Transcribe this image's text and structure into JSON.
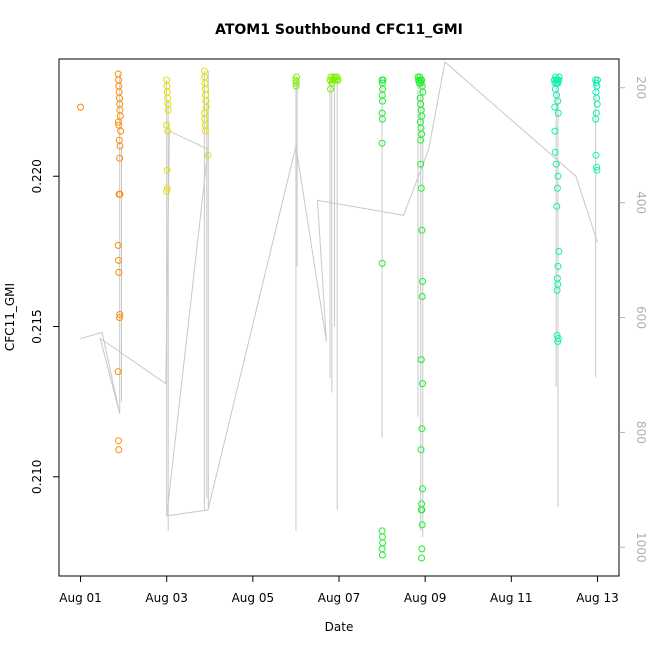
{
  "chart_data": {
    "type": "scatter",
    "title": "ATOM1 Southbound CFC11_GMI",
    "xlabel": "Date",
    "ylabel": "CFC11_GMI",
    "x_axis": {
      "type": "date",
      "range": [
        "2016-07-31T12:00",
        "2016-08-13T12:00"
      ],
      "ticks": [
        {
          "value": "2016-08-01T00:00",
          "label": "Aug 01"
        },
        {
          "value": "2016-08-03T00:00",
          "label": "Aug 03"
        },
        {
          "value": "2016-08-05T00:00",
          "label": "Aug 05"
        },
        {
          "value": "2016-08-07T00:00",
          "label": "Aug 07"
        },
        {
          "value": "2016-08-09T00:00",
          "label": "Aug 09"
        },
        {
          "value": "2016-08-11T00:00",
          "label": "Aug 11"
        },
        {
          "value": "2016-08-13T00:00",
          "label": "Aug 13"
        }
      ]
    },
    "y_axis": {
      "range": [
        0.2067,
        0.2239
      ],
      "ticks": [
        0.21,
        0.215,
        0.22
      ],
      "tick_labels": [
        "0.210",
        "0.215",
        "0.220"
      ]
    },
    "y2_axis": {
      "label": "",
      "range": [
        1050,
        150
      ],
      "ticks": [
        200,
        400,
        600,
        800,
        1000
      ],
      "tick_labels": [
        "200",
        "400",
        "600",
        "800",
        "1000"
      ],
      "color": "#b0b0b0"
    },
    "grid": false,
    "colors": {
      "line": "#c8c8c8",
      "axis": "#000000"
    },
    "groups": [
      {
        "color": "#ff8c00",
        "points": [
          [
            "2016-08-01T00:00",
            0.2223
          ],
          [
            "2016-08-01T21:00",
            0.2234
          ],
          [
            "2016-08-01T21:10",
            0.2232
          ],
          [
            "2016-08-01T21:20",
            0.223
          ],
          [
            "2016-08-01T21:30",
            0.2228
          ],
          [
            "2016-08-01T21:40",
            0.2226
          ],
          [
            "2016-08-01T21:50",
            0.2224
          ],
          [
            "2016-08-01T22:00",
            0.2222
          ],
          [
            "2016-08-01T22:10",
            0.222
          ],
          [
            "2016-08-01T21:05",
            0.2218
          ],
          [
            "2016-08-01T21:15",
            0.2217
          ],
          [
            "2016-08-01T22:20",
            0.2215
          ],
          [
            "2016-08-01T21:35",
            0.2212
          ],
          [
            "2016-08-01T22:00",
            0.221
          ],
          [
            "2016-08-01T21:45",
            0.2206
          ],
          [
            "2016-08-01T21:30",
            0.2194
          ],
          [
            "2016-08-01T22:00",
            0.2194
          ],
          [
            "2016-08-01T21:00",
            0.2177
          ],
          [
            "2016-08-01T21:10",
            0.2172
          ],
          [
            "2016-08-01T21:20",
            0.2168
          ],
          [
            "2016-08-01T21:40",
            0.2153
          ],
          [
            "2016-08-01T21:50",
            0.2154
          ],
          [
            "2016-08-01T21:00",
            0.2135
          ],
          [
            "2016-08-01T21:10",
            0.2112
          ],
          [
            "2016-08-01T21:20",
            0.2109
          ]
        ]
      },
      {
        "color": "#e0e000",
        "points": [
          [
            "2016-08-03T00:00",
            0.2232
          ],
          [
            "2016-08-03T00:10",
            0.223
          ],
          [
            "2016-08-03T00:20",
            0.2228
          ],
          [
            "2016-08-03T00:30",
            0.2226
          ],
          [
            "2016-08-03T00:40",
            0.2224
          ],
          [
            "2016-08-03T00:50",
            0.2222
          ],
          [
            "2016-08-03T00:00",
            0.2217
          ],
          [
            "2016-08-03T00:30",
            0.2215
          ],
          [
            "2016-08-03T00:10",
            0.2202
          ],
          [
            "2016-08-03T00:20",
            0.2196
          ],
          [
            "2016-08-03T00:00",
            0.2195
          ],
          [
            "2016-08-03T21:00",
            0.2235
          ],
          [
            "2016-08-03T21:10",
            0.2233
          ],
          [
            "2016-08-03T21:20",
            0.2231
          ],
          [
            "2016-08-03T21:30",
            0.2229
          ],
          [
            "2016-08-03T21:40",
            0.2227
          ],
          [
            "2016-08-03T21:50",
            0.2225
          ],
          [
            "2016-08-03T22:00",
            0.2223
          ],
          [
            "2016-08-03T21:05",
            0.2221
          ],
          [
            "2016-08-03T21:15",
            0.2219
          ],
          [
            "2016-08-03T21:25",
            0.2217
          ],
          [
            "2016-08-03T21:35",
            0.2215
          ],
          [
            "2016-08-03T23:00",
            0.2207
          ]
        ]
      },
      {
        "color": "#80f000",
        "points": [
          [
            "2016-08-06T00:00",
            0.2232
          ],
          [
            "2016-08-06T00:10",
            0.2231
          ],
          [
            "2016-08-06T00:20",
            0.2233
          ],
          [
            "2016-08-06T00:05",
            0.223
          ],
          [
            "2016-08-06T19:00",
            0.2232
          ],
          [
            "2016-08-06T19:30",
            0.2233
          ],
          [
            "2016-08-06T20:00",
            0.2231
          ],
          [
            "2016-08-06T20:30",
            0.2232
          ],
          [
            "2016-08-06T21:00",
            0.2233
          ],
          [
            "2016-08-06T21:30",
            0.2232
          ],
          [
            "2016-08-06T22:00",
            0.2233
          ],
          [
            "2016-08-06T22:30",
            0.2232
          ],
          [
            "2016-08-06T23:00",
            0.2233
          ],
          [
            "2016-08-06T23:30",
            0.2232
          ],
          [
            "2016-08-06T19:15",
            0.2229
          ]
        ]
      },
      {
        "color": "#20f030",
        "points": [
          [
            "2016-08-08T00:00",
            0.2232
          ],
          [
            "2016-08-08T00:10",
            0.2231
          ],
          [
            "2016-08-08T00:20",
            0.2229
          ],
          [
            "2016-08-08T00:30",
            0.2232
          ],
          [
            "2016-08-08T00:05",
            0.2227
          ],
          [
            "2016-08-08T00:15",
            0.2225
          ],
          [
            "2016-08-08T00:00",
            0.2221
          ],
          [
            "2016-08-08T00:10",
            0.2219
          ],
          [
            "2016-08-08T00:00",
            0.2211
          ],
          [
            "2016-08-08T00:05",
            0.2171
          ],
          [
            "2016-08-08T00:00",
            0.2082
          ],
          [
            "2016-08-08T00:10",
            0.208
          ],
          [
            "2016-08-08T00:20",
            0.2078
          ],
          [
            "2016-08-08T00:00",
            0.2076
          ],
          [
            "2016-08-08T00:10",
            0.2074
          ],
          [
            "2016-08-08T20:00",
            0.2233
          ],
          [
            "2016-08-08T20:20",
            0.2232
          ],
          [
            "2016-08-08T20:40",
            0.2231
          ],
          [
            "2016-08-08T21:00",
            0.2233
          ],
          [
            "2016-08-08T21:20",
            0.2232
          ],
          [
            "2016-08-08T21:40",
            0.2231
          ],
          [
            "2016-08-08T22:00",
            0.2232
          ],
          [
            "2016-08-08T22:20",
            0.223
          ],
          [
            "2016-08-08T22:40",
            0.2228
          ],
          [
            "2016-08-08T21:10",
            0.2226
          ],
          [
            "2016-08-08T21:30",
            0.2224
          ],
          [
            "2016-08-08T21:50",
            0.2222
          ],
          [
            "2016-08-08T22:10",
            0.222
          ],
          [
            "2016-08-08T21:20",
            0.2218
          ],
          [
            "2016-08-08T21:40",
            0.2216
          ],
          [
            "2016-08-08T22:00",
            0.2214
          ],
          [
            "2016-08-08T21:30",
            0.2212
          ],
          [
            "2016-08-08T21:30",
            0.2204
          ],
          [
            "2016-08-08T21:50",
            0.2196
          ],
          [
            "2016-08-08T22:10",
            0.2182
          ],
          [
            "2016-08-08T22:30",
            0.2165
          ],
          [
            "2016-08-08T22:20",
            0.216
          ],
          [
            "2016-08-08T21:50",
            0.2139
          ],
          [
            "2016-08-08T22:30",
            0.2131
          ],
          [
            "2016-08-08T22:10",
            0.2116
          ],
          [
            "2016-08-08T21:40",
            0.2109
          ],
          [
            "2016-08-08T22:30",
            0.2096
          ],
          [
            "2016-08-08T22:00",
            0.2091
          ],
          [
            "2016-08-08T21:50",
            0.2089
          ],
          [
            "2016-08-08T22:10",
            0.2089
          ],
          [
            "2016-08-08T22:20",
            0.2084
          ],
          [
            "2016-08-08T22:10",
            0.2076
          ],
          [
            "2016-08-08T22:00",
            0.2073
          ]
        ]
      },
      {
        "color": "#10f0b0",
        "points": [
          [
            "2016-08-12T00:00",
            0.2232
          ],
          [
            "2016-08-12T00:20",
            0.2231
          ],
          [
            "2016-08-12T00:40",
            0.2233
          ],
          [
            "2016-08-12T01:00",
            0.2232
          ],
          [
            "2016-08-12T01:20",
            0.2231
          ],
          [
            "2016-08-12T01:40",
            0.2232
          ],
          [
            "2016-08-12T02:00",
            0.2231
          ],
          [
            "2016-08-12T02:20",
            0.2232
          ],
          [
            "2016-08-12T02:40",
            0.2233
          ],
          [
            "2016-08-12T00:30",
            0.2229
          ],
          [
            "2016-08-12T01:10",
            0.2227
          ],
          [
            "2016-08-12T01:50",
            0.2225
          ],
          [
            "2016-08-12T00:15",
            0.2223
          ],
          [
            "2016-08-12T02:10",
            0.2221
          ],
          [
            "2016-08-12T00:20",
            0.2215
          ],
          [
            "2016-08-12T00:30",
            0.2208
          ],
          [
            "2016-08-12T01:00",
            0.2204
          ],
          [
            "2016-08-12T02:00",
            0.22
          ],
          [
            "2016-08-12T01:40",
            0.2196
          ],
          [
            "2016-08-12T01:20",
            0.219
          ],
          [
            "2016-08-12T02:30",
            0.2175
          ],
          [
            "2016-08-12T02:00",
            0.217
          ],
          [
            "2016-08-12T01:40",
            0.2166
          ],
          [
            "2016-08-12T01:50",
            0.2164
          ],
          [
            "2016-08-12T01:30",
            0.2162
          ],
          [
            "2016-08-12T01:30",
            0.2147
          ],
          [
            "2016-08-12T01:50",
            0.2145
          ],
          [
            "2016-08-12T02:10",
            0.2146
          ],
          [
            "2016-08-12T23:00",
            0.2232
          ],
          [
            "2016-08-12T23:20",
            0.2231
          ],
          [
            "2016-08-12T23:40",
            0.223
          ],
          [
            "2016-08-13T00:00",
            0.2232
          ],
          [
            "2016-08-12T23:10",
            0.2228
          ],
          [
            "2016-08-12T23:30",
            0.2226
          ],
          [
            "2016-08-12T23:50",
            0.2224
          ],
          [
            "2016-08-12T23:20",
            0.2221
          ],
          [
            "2016-08-12T23:00",
            0.2219
          ],
          [
            "2016-08-12T23:10",
            0.2207
          ],
          [
            "2016-08-12T23:30",
            0.2203
          ],
          [
            "2016-08-12T23:40",
            0.2202
          ]
        ]
      }
    ],
    "line_path": [
      [
        "2016-08-01T00:00",
        0.2146
      ],
      [
        "2016-08-01T12:00",
        0.2148
      ],
      [
        "2016-08-01T21:50",
        0.2121
      ],
      [
        "2016-08-01T11:00",
        0.2146
      ],
      [
        "2016-08-02T23:30",
        0.2131
      ],
      [
        "2016-08-03T01:30",
        0.2215
      ],
      [
        "2016-08-03T23:00",
        0.2209
      ],
      [
        "2016-08-03T00:00",
        0.2087
      ],
      [
        "2016-08-03T23:00",
        0.2089
      ],
      [
        "2016-08-06T00:00",
        0.221
      ],
      [
        "2016-08-06T17:00",
        0.2145
      ],
      [
        "2016-08-06T12:00",
        0.2192
      ],
      [
        "2016-08-08T12:00",
        0.2187
      ],
      [
        "2016-08-09T02:00",
        0.2209
      ],
      [
        "2016-08-09T11:00",
        0.2238
      ],
      [
        "2016-08-12T12:00",
        0.22
      ],
      [
        "2016-08-13T00:00",
        0.2178
      ]
    ],
    "profile_spikes": [
      {
        "x": "2016-08-01T21:50",
        "top": 0.2234,
        "bottom": 0.2121
      },
      {
        "x": "2016-08-01T22:50",
        "top": 0.221,
        "bottom": 0.2125
      },
      {
        "x": "2016-08-03T00:00",
        "top": 0.2232,
        "bottom": 0.2087
      },
      {
        "x": "2016-08-03T00:50",
        "top": 0.2225,
        "bottom": 0.2082
      },
      {
        "x": "2016-08-03T21:00",
        "top": 0.2235,
        "bottom": 0.2089
      },
      {
        "x": "2016-08-03T22:20",
        "top": 0.2225,
        "bottom": 0.2093
      },
      {
        "x": "2016-08-03T23:10",
        "top": 0.2235,
        "bottom": 0.209
      },
      {
        "x": "2016-08-06T00:00",
        "top": 0.2233,
        "bottom": 0.2082
      },
      {
        "x": "2016-08-06T00:40",
        "top": 0.2233,
        "bottom": 0.217
      },
      {
        "x": "2016-08-06T19:00",
        "top": 0.2233,
        "bottom": 0.2133
      },
      {
        "x": "2016-08-06T20:00",
        "top": 0.2233,
        "bottom": 0.2128
      },
      {
        "x": "2016-08-06T21:30",
        "top": 0.2233,
        "bottom": 0.215
      },
      {
        "x": "2016-08-06T23:00",
        "top": 0.2233,
        "bottom": 0.2089
      },
      {
        "x": "2016-08-08T00:00",
        "top": 0.2233,
        "bottom": 0.2113
      },
      {
        "x": "2016-08-08T20:00",
        "top": 0.2233,
        "bottom": 0.212
      },
      {
        "x": "2016-08-08T21:30",
        "top": 0.2233,
        "bottom": 0.2082
      },
      {
        "x": "2016-08-08T22:40",
        "top": 0.2233,
        "bottom": 0.208
      },
      {
        "x": "2016-08-12T01:00",
        "top": 0.2233,
        "bottom": 0.213
      },
      {
        "x": "2016-08-12T02:00",
        "top": 0.2233,
        "bottom": 0.209
      },
      {
        "x": "2016-08-12T23:00",
        "top": 0.2233,
        "bottom": 0.2133
      }
    ]
  }
}
